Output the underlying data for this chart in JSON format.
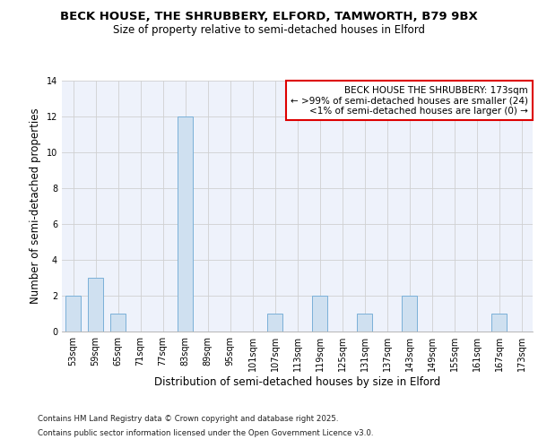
{
  "title_line1": "BECK HOUSE, THE SHRUBBERY, ELFORD, TAMWORTH, B79 9BX",
  "title_line2": "Size of property relative to semi-detached houses in Elford",
  "xlabel": "Distribution of semi-detached houses by size in Elford",
  "ylabel": "Number of semi-detached properties",
  "categories": [
    "53sqm",
    "59sqm",
    "65sqm",
    "71sqm",
    "77sqm",
    "83sqm",
    "89sqm",
    "95sqm",
    "101sqm",
    "107sqm",
    "113sqm",
    "119sqm",
    "125sqm",
    "131sqm",
    "137sqm",
    "143sqm",
    "149sqm",
    "155sqm",
    "161sqm",
    "167sqm",
    "173sqm"
  ],
  "values": [
    2,
    3,
    1,
    0,
    0,
    12,
    0,
    0,
    0,
    1,
    0,
    2,
    0,
    1,
    0,
    2,
    0,
    0,
    0,
    1,
    0
  ],
  "bar_color": "#cfe0f0",
  "bar_edge_color": "#7ab0d8",
  "ylim": [
    0,
    14
  ],
  "yticks": [
    0,
    2,
    4,
    6,
    8,
    10,
    12,
    14
  ],
  "grid_color": "#d0d0d0",
  "background_color": "#eef2fb",
  "legend_title": "BECK HOUSE THE SHRUBBERY: 173sqm",
  "legend_line2": "← >99% of semi-detached houses are smaller (24)",
  "legend_line3": "<1% of semi-detached houses are larger (0) →",
  "legend_border_color": "#dd0000",
  "footer_line1": "Contains HM Land Registry data © Crown copyright and database right 2025.",
  "footer_line2": "Contains public sector information licensed under the Open Government Licence v3.0.",
  "title_fontsize": 9.5,
  "subtitle_fontsize": 8.5,
  "axis_label_fontsize": 8.5,
  "tick_fontsize": 7,
  "legend_fontsize": 7.5,
  "footer_fontsize": 6.2
}
